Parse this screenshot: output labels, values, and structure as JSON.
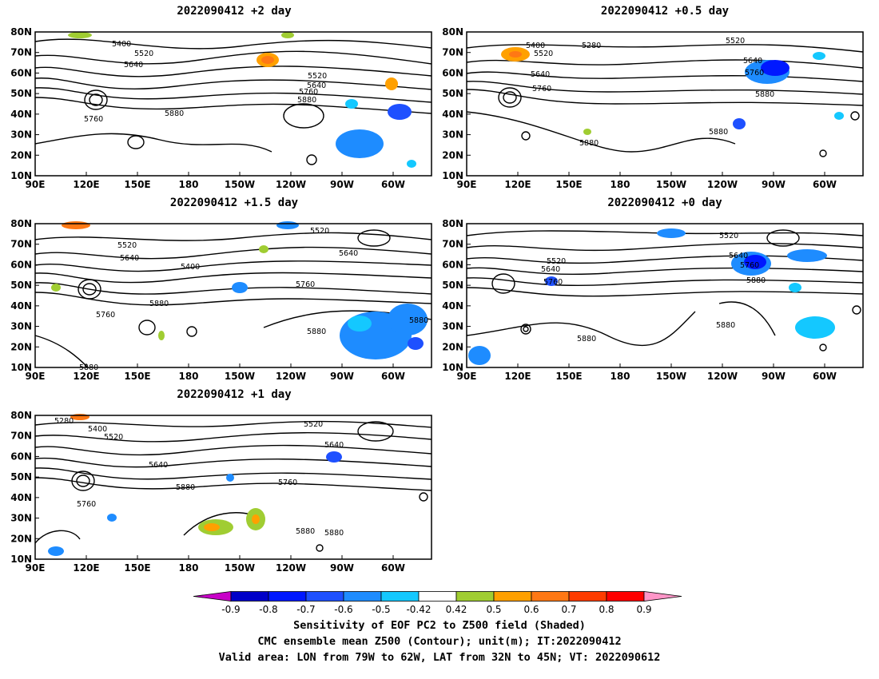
{
  "panels": [
    {
      "id": "p1",
      "title": "2022090412 +2 day",
      "contour_labels": [
        "5400",
        "5520",
        "5640",
        "5520",
        "5640",
        "5760",
        "5880",
        "5760",
        "5880"
      ]
    },
    {
      "id": "p2",
      "title": "2022090412 +0.5 day",
      "contour_labels": [
        "5400",
        "5520",
        "5280",
        "5520",
        "5640",
        "5760",
        "5640",
        "5760",
        "5880",
        "5880",
        "5880"
      ]
    },
    {
      "id": "p3",
      "title": "2022090412 +1.5 day",
      "contour_labels": [
        "5520",
        "5520",
        "5640",
        "5640",
        "5400",
        "5760",
        "5880",
        "5760",
        "5880",
        "5880",
        "5880"
      ]
    },
    {
      "id": "p4",
      "title": "2022090412 +0 day",
      "contour_labels": [
        "5520",
        "5520",
        "5640",
        "5640",
        "5760",
        "5760",
        "5880",
        "5880",
        "5880"
      ]
    },
    {
      "id": "p5",
      "title": "2022090412 +1 day",
      "contour_labels": [
        "5280",
        "5400",
        "5520",
        "5520",
        "5640",
        "5640",
        "5880",
        "5760",
        "5760",
        "5880",
        "5880"
      ]
    }
  ],
  "axes": {
    "lat_labels": [
      "80N",
      "70N",
      "60N",
      "50N",
      "40N",
      "30N",
      "20N",
      "10N"
    ],
    "lon_labels": [
      "90E",
      "120E",
      "150E",
      "180",
      "150W",
      "120W",
      "90W",
      "60W"
    ]
  },
  "colorbar": {
    "tick_labels": [
      "-0.9",
      "-0.8",
      "-0.7",
      "-0.6",
      "-0.5",
      "-0.42",
      "0.42",
      "0.5",
      "0.6",
      "0.7",
      "0.8",
      "0.9"
    ],
    "colors": [
      "#c800c8",
      "#0000c8",
      "#0018ff",
      "#1e50ff",
      "#1e8cff",
      "#14c8ff",
      "#ffffff",
      "#a0cd32",
      "#ffa000",
      "#ff7814",
      "#ff3c00",
      "#ff0000",
      "#ff96c8"
    ]
  },
  "caption": {
    "line1": "Sensitivity of EOF PC2 to Z500 field (Shaded)",
    "line2": "CMC ensemble mean Z500 (Contour); unit(m); IT:2022090412",
    "line3": "Valid area: LON from 79W to 62W, LAT from 32N to 45N; VT: 2022090612"
  }
}
